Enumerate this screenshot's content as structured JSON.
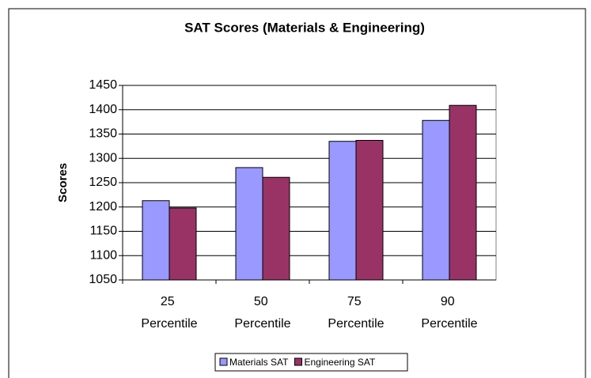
{
  "chart_data": {
    "type": "bar",
    "title": "SAT Scores (Materials & Engineering)",
    "ylabel": "Scores",
    "categories": [
      "25 Percentile",
      "50 Percentile",
      "75 Percentile",
      "90 Percentile"
    ],
    "series": [
      {
        "name": "Materials SAT",
        "color": "#9999ff",
        "values": [
          1213,
          1281,
          1335,
          1378
        ]
      },
      {
        "name": "Engineering SAT",
        "color": "#993366",
        "values": [
          1198,
          1261,
          1337,
          1409
        ]
      }
    ],
    "ylim": [
      1050,
      1450
    ],
    "yticks": [
      1050,
      1100,
      1150,
      1200,
      1250,
      1300,
      1350,
      1400,
      1450
    ],
    "grid": true,
    "legend": "bottom"
  }
}
